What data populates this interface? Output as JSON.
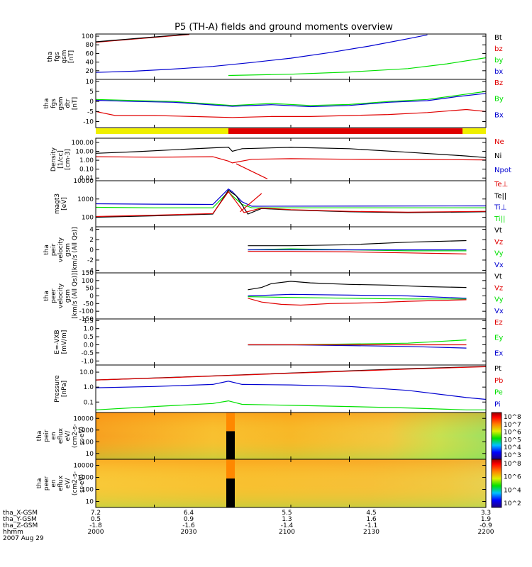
{
  "title": "P5 (TH-A) fields and ground moments overview",
  "colors": {
    "black": "#000000",
    "red": "#e00000",
    "green": "#00e000",
    "blue": "#0000d0",
    "yellow": "#f0f000"
  },
  "chart_data": [
    {
      "type": "line",
      "ylabel": [
        "tha",
        "fgs",
        "gsm",
        "[nT]"
      ],
      "yticks": [
        "100",
        "80",
        "60",
        "40",
        "20"
      ],
      "ylim": [
        0,
        105
      ],
      "legend": [
        {
          "name": "Bt",
          "color": "#000000"
        },
        {
          "name": "bz",
          "color": "#e00000"
        },
        {
          "name": "by",
          "color": "#00e000"
        },
        {
          "name": "bx",
          "color": "#0000d0"
        }
      ],
      "series": [
        {
          "color": "#e00000",
          "x": [
            2000,
            2008,
            2016,
            2024,
            2032,
            2040,
            2048
          ],
          "y": [
            86,
            89,
            92,
            95,
            98,
            101,
            104
          ]
        },
        {
          "color": "#000000",
          "x": [
            2000,
            2008,
            2016,
            2024,
            2032,
            2040,
            2048
          ],
          "y": [
            87,
            90,
            93,
            96,
            99,
            102,
            105
          ]
        },
        {
          "color": "#0000d0",
          "x": [
            2000,
            2020,
            2040,
            2060,
            2080,
            2100,
            2120,
            2140,
            2160,
            2170
          ],
          "y": [
            16,
            19,
            24,
            30,
            39,
            49,
            62,
            77,
            94,
            103
          ]
        },
        {
          "color": "#00e000",
          "x": [
            2068,
            2100,
            2130,
            2160,
            2180,
            2200
          ],
          "y": [
            9,
            12,
            17,
            25,
            36,
            50
          ]
        }
      ]
    },
    {
      "type": "line",
      "ylabel": [
        "tha",
        "fgs",
        "gsm",
        "dtr",
        "[nT]"
      ],
      "yticks": [
        "10",
        "5",
        "0",
        "-5",
        "-10"
      ],
      "ylim": [
        -13,
        11
      ],
      "legend": [
        {
          "name": "Bz",
          "color": "#e00000"
        },
        {
          "name": "By",
          "color": "#00e000"
        },
        {
          "name": "Bx",
          "color": "#0000d0"
        }
      ],
      "series": [
        {
          "color": "#00e000",
          "x": [
            2000,
            2020,
            2040,
            2055,
            2070,
            2090,
            2110,
            2130,
            2150,
            2170,
            2185,
            2200
          ],
          "y": [
            1,
            0.5,
            0,
            -1,
            -2,
            -1,
            -2,
            -1.5,
            0,
            1,
            3,
            5
          ]
        },
        {
          "color": "#0000d0",
          "x": [
            2000,
            2020,
            2040,
            2055,
            2070,
            2090,
            2110,
            2130,
            2150,
            2170,
            2185,
            2200
          ],
          "y": [
            0.6,
            0,
            -0.4,
            -1.4,
            -2.4,
            -1.6,
            -2.6,
            -2,
            -0.4,
            0.4,
            2.4,
            4
          ]
        },
        {
          "color": "#e00000",
          "x": [
            2000,
            2010,
            2030,
            2050,
            2070,
            2090,
            2110,
            2130,
            2150,
            2170,
            2190,
            2200
          ],
          "y": [
            -5,
            -7,
            -7,
            -7.5,
            -8,
            -7.5,
            -7.5,
            -7,
            -6.5,
            -5.5,
            -4,
            -5
          ]
        }
      ]
    },
    {
      "type": "line",
      "ylabel": [
        "Density",
        "[1/cc]",
        "[cm-3]"
      ],
      "yticks": [
        "100.00",
        "10.00",
        "1.00",
        "0.10",
        "0.01"
      ],
      "ylim": [
        0.005,
        300
      ],
      "yscale": "log",
      "legend": [
        {
          "name": "Ne",
          "color": "#e00000"
        },
        {
          "name": "Ni",
          "color": "#000000"
        },
        {
          "name": "Npot",
          "color": "#0000d0"
        }
      ],
      "series": [
        {
          "color": "#000000",
          "x": [
            2000,
            2020,
            2040,
            2060,
            2068,
            2070,
            2075,
            2100,
            2130,
            2160,
            2190,
            2200
          ],
          "y": [
            6,
            9,
            15,
            25,
            30,
            10,
            20,
            28,
            20,
            8,
            3,
            2
          ]
        },
        {
          "color": "#e00000",
          "x": [
            2000,
            2030,
            2060,
            2068,
            2070,
            2080,
            2100,
            2130,
            2170,
            2200
          ],
          "y": [
            2.5,
            2.2,
            2.5,
            0.8,
            0.5,
            1.3,
            1.5,
            1.3,
            1.2,
            1.1
          ]
        },
        {
          "color": "#e00000",
          "x": [
            2072,
            2088
          ],
          "y": [
            0.4,
            0.008
          ]
        }
      ]
    },
    {
      "type": "line",
      "ylabel": [
        "magt3",
        "[eV]"
      ],
      "yticks": [
        "10000",
        "1000",
        "100"
      ],
      "ylim": [
        30,
        10000
      ],
      "yscale": "log",
      "legend": [
        {
          "name": "Te⊥",
          "color": "#e00000"
        },
        {
          "name": "Te||",
          "color": "#000000"
        },
        {
          "name": "Ti⊥",
          "color": "#0000d0"
        },
        {
          "name": "Ti||",
          "color": "#00e000"
        }
      ],
      "series": [
        {
          "color": "#0000d0",
          "x": [
            2000,
            2030,
            2060,
            2068,
            2070,
            2075,
            2080,
            2200
          ],
          "y": [
            550,
            520,
            500,
            3500,
            2500,
            700,
            400,
            420
          ]
        },
        {
          "color": "#00e000",
          "x": [
            2000,
            2030,
            2060,
            2068,
            2070,
            2075,
            2080,
            2200
          ],
          "y": [
            350,
            330,
            330,
            2500,
            1500,
            500,
            330,
            330
          ]
        },
        {
          "color": "#000000",
          "x": [
            2000,
            2030,
            2060,
            2068,
            2072,
            2078,
            2085,
            2100,
            2130,
            2160,
            2200
          ],
          "y": [
            100,
            120,
            150,
            3000,
            1500,
            150,
            300,
            250,
            200,
            180,
            200
          ]
        },
        {
          "color": "#e00000",
          "x": [
            2000,
            2030,
            2060,
            2068,
            2072,
            2076,
            2085,
            2100,
            2130,
            2160,
            2200
          ],
          "y": [
            110,
            130,
            160,
            2500,
            700,
            180,
            320,
            260,
            210,
            190,
            210
          ]
        },
        {
          "color": "#e00000",
          "x": [
            2074,
            2085
          ],
          "y": [
            200,
            2000
          ]
        }
      ]
    },
    {
      "type": "line",
      "ylabel": [
        "tha",
        "peir",
        "velocity",
        "gsm",
        "[km/s (All Qs)]"
      ],
      "yticks": [
        "4",
        "2",
        "0",
        "-2",
        "-4"
      ],
      "ylim": [
        -4.5,
        4.5
      ],
      "legend": [
        {
          "name": "Vt",
          "color": "#000000"
        },
        {
          "name": "Vz",
          "color": "#e00000"
        },
        {
          "name": "Vy",
          "color": "#00e000"
        },
        {
          "name": "Vx",
          "color": "#0000d0"
        }
      ],
      "series": [
        {
          "color": "#000000",
          "x": [
            2078,
            2100,
            2130,
            2160,
            2190
          ],
          "y": [
            0.8,
            0.8,
            1,
            1.5,
            1.8
          ]
        },
        {
          "color": "#00e000",
          "x": [
            2078,
            2100,
            2130,
            2160,
            2190
          ],
          "y": [
            0,
            0.2,
            0,
            -0.2,
            -0.2
          ]
        },
        {
          "color": "#0000d0",
          "x": [
            2078,
            2100,
            2130,
            2160,
            2190
          ],
          "y": [
            0,
            0,
            0,
            0,
            0
          ]
        },
        {
          "color": "#e00000",
          "x": [
            2078,
            2100,
            2130,
            2160,
            2190
          ],
          "y": [
            -0.3,
            -0.3,
            -0.4,
            -0.6,
            -0.8
          ]
        }
      ]
    },
    {
      "type": "line",
      "ylabel": [
        "tha",
        "peer",
        "velocity",
        "gsm",
        "[km/s (All Qs)]"
      ],
      "yticks": [
        "150",
        "100",
        "50",
        "0",
        "-50",
        "-100",
        "-150"
      ],
      "ylim": [
        -150,
        150
      ],
      "legend": [
        {
          "name": "Vt",
          "color": "#000000"
        },
        {
          "name": "Vz",
          "color": "#e00000"
        },
        {
          "name": "Vy",
          "color": "#00e000"
        },
        {
          "name": "Vx",
          "color": "#0000d0"
        }
      ],
      "series": [
        {
          "color": "#000000",
          "x": [
            2078,
            2085,
            2090,
            2100,
            2110,
            2130,
            2150,
            2170,
            2190
          ],
          "y": [
            40,
            55,
            80,
            95,
            85,
            75,
            70,
            60,
            55
          ]
        },
        {
          "color": "#00e000",
          "x": [
            2078,
            2100,
            2130,
            2160,
            2190
          ],
          "y": [
            -5,
            -10,
            -15,
            -20,
            -20
          ]
        },
        {
          "color": "#0000d0",
          "x": [
            2078,
            2100,
            2130,
            2160,
            2190
          ],
          "y": [
            0,
            10,
            5,
            0,
            -15
          ]
        },
        {
          "color": "#e00000",
          "x": [
            2078,
            2085,
            2095,
            2105,
            2120,
            2140,
            2160,
            2190
          ],
          "y": [
            -15,
            -40,
            -55,
            -60,
            -50,
            -45,
            -35,
            -25
          ]
        }
      ]
    },
    {
      "type": "line",
      "ylabel": [
        "E=-VXB",
        "[mV/m]"
      ],
      "yticks": [
        "1.5",
        "1.0",
        "0.5",
        "0.0",
        "-0.5",
        "-1.0"
      ],
      "ylim": [
        -1.25,
        1.6
      ],
      "legend": [
        {
          "name": "Ez",
          "color": "#e00000"
        },
        {
          "name": "Ey",
          "color": "#00e000"
        },
        {
          "name": "Ex",
          "color": "#0000d0"
        }
      ],
      "series": [
        {
          "color": "#00e000",
          "x": [
            2078,
            2100,
            2130,
            2160,
            2190
          ],
          "y": [
            0,
            0,
            0.05,
            0.1,
            0.3
          ]
        },
        {
          "color": "#0000d0",
          "x": [
            2078,
            2100,
            2130,
            2160,
            2190
          ],
          "y": [
            0,
            0,
            -0.05,
            -0.1,
            -0.2
          ]
        },
        {
          "color": "#e00000",
          "x": [
            2078,
            2100,
            2130,
            2160,
            2190
          ],
          "y": [
            0,
            0,
            0,
            0,
            0
          ]
        }
      ]
    },
    {
      "type": "line",
      "ylabel": [
        "Pressure",
        "[nPa]"
      ],
      "yticks": [
        "10.0",
        "1.0",
        "0.1"
      ],
      "ylim": [
        0.02,
        30
      ],
      "yscale": "log",
      "legend": [
        {
          "name": "Pt",
          "color": "#000000"
        },
        {
          "name": "Pb",
          "color": "#e00000"
        },
        {
          "name": "Pe",
          "color": "#00e000"
        },
        {
          "name": "Pi",
          "color": "#0000d0"
        }
      ],
      "series": [
        {
          "color": "#000000",
          "x": [
            2000,
            2040,
            2080,
            2120,
            2160,
            2200
          ],
          "y": [
            3,
            4.5,
            7,
            11,
            17,
            24
          ]
        },
        {
          "color": "#e00000",
          "x": [
            2000,
            2040,
            2080,
            2120,
            2160,
            2200
          ],
          "y": [
            3,
            4.4,
            6.8,
            10.5,
            16,
            23
          ]
        },
        {
          "color": "#0000d0",
          "x": [
            2000,
            2030,
            2060,
            2068,
            2075,
            2100,
            2130,
            2160,
            2190,
            2200
          ],
          "y": [
            0.9,
            1.1,
            1.5,
            2.5,
            1.5,
            1.4,
            1.1,
            0.6,
            0.2,
            0.15
          ]
        },
        {
          "color": "#00e000",
          "x": [
            2000,
            2030,
            2060,
            2068,
            2075,
            2100,
            2130,
            2160,
            2190,
            2200
          ],
          "y": [
            0.03,
            0.05,
            0.08,
            0.12,
            0.07,
            0.06,
            0.05,
            0.04,
            0.03,
            0.03
          ]
        }
      ]
    },
    {
      "type": "heatmap",
      "ylabel": [
        "tha",
        "peir",
        "en",
        "eflux",
        "eV/",
        "(cm2-s-",
        "sr-eV)"
      ],
      "yticks": [
        "10000",
        "1000",
        "100",
        "10"
      ],
      "colorbar": [
        "10^8",
        "10^7",
        "10^6",
        "10^5",
        "10^4",
        "10^3"
      ]
    },
    {
      "type": "heatmap",
      "ylabel": [
        "tha",
        "peer",
        "en",
        "eflux",
        "eV/",
        "(cm2-s-",
        "sr-eV)"
      ],
      "yticks": [
        "10000",
        "1000",
        "100",
        "10"
      ],
      "colorbar": [
        "10^8",
        "10^6",
        "10^4",
        "10^2"
      ]
    }
  ],
  "state_bar": [
    {
      "from": 2000,
      "to": 2068,
      "color": "#f0f000"
    },
    {
      "from": 2068,
      "to": 2188,
      "color": "#e00000"
    },
    {
      "from": 2188,
      "to": 2200,
      "color": "#f0f000"
    }
  ],
  "xaxis": {
    "rows": [
      {
        "label": "tha_X-GSM",
        "values": [
          "7.2",
          "6.4",
          "5.5",
          "4.5",
          "3.3"
        ]
      },
      {
        "label": "tha_Y-GSM",
        "values": [
          "0.5",
          "0.9",
          "1.3",
          "1.6",
          "1.9"
        ]
      },
      {
        "label": "tha_Z-GSM",
        "values": [
          "-1.8",
          "-1.6",
          "-1.4",
          "-1.1",
          "-0.9"
        ]
      },
      {
        "label": "hhmm",
        "values": [
          "2000",
          "2030",
          "2100",
          "2130",
          "2200"
        ]
      }
    ],
    "date": "2007 Aug 29"
  }
}
